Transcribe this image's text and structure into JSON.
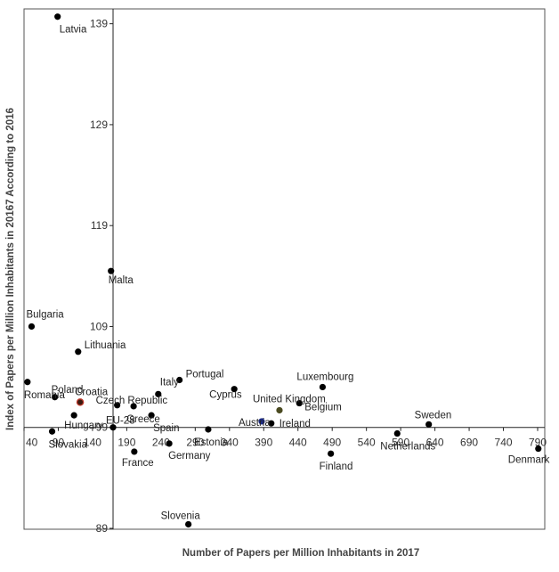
{
  "chart_data": {
    "type": "scatter",
    "title": "",
    "xlabel": "Number of Papers per Million Inhabitants in 2017",
    "ylabel": "Index of Papers per Million Inhabitants in 20167 According to 2016",
    "xlim": [
      40,
      790
    ],
    "ylim": [
      89,
      141
    ],
    "x_ticks": [
      40,
      90,
      140,
      190,
      240,
      290,
      340,
      390,
      440,
      490,
      540,
      590,
      640,
      690,
      740,
      790
    ],
    "y_ticks": [
      89,
      99,
      109,
      119,
      129,
      139
    ],
    "x_cross": 99,
    "y_cross": 170,
    "grid": false,
    "legend": "none",
    "default_color": "#000000",
    "points": [
      {
        "label": "Latvia",
        "x": 89,
        "y": 139.7
      },
      {
        "label": "Malta",
        "x": 167,
        "y": 114.5
      },
      {
        "label": "Bulgaria",
        "x": 51,
        "y": 109.0
      },
      {
        "label": "Lithuania",
        "x": 119,
        "y": 106.5
      },
      {
        "label": "Romania",
        "x": 45,
        "y": 103.5
      },
      {
        "label": "Poland",
        "x": 85,
        "y": 102.0
      },
      {
        "label": "Croatia",
        "x": 122,
        "y": 101.5,
        "color": "#3a1a10",
        "highlight": "#c0392b"
      },
      {
        "label": "Hungary",
        "x": 113,
        "y": 100.2
      },
      {
        "label": "Slovakia",
        "x": 81,
        "y": 98.6
      },
      {
        "label": "EU-28",
        "x": 170,
        "y": 99.0,
        "label_color": "#e6b800"
      },
      {
        "label": "Czech Republic",
        "x": 176,
        "y": 101.2
      },
      {
        "label": "Greece",
        "x": 200,
        "y": 101.1
      },
      {
        "label": "Spain",
        "x": 226,
        "y": 100.2
      },
      {
        "label": "France",
        "x": 201,
        "y": 96.6
      },
      {
        "label": "Italy",
        "x": 236,
        "y": 102.3
      },
      {
        "label": "Germany",
        "x": 252,
        "y": 97.4
      },
      {
        "label": "Portugal",
        "x": 267,
        "y": 103.7
      },
      {
        "label": "Slovenia",
        "x": 280,
        "y": 89.4,
        "label_color": "#e0201c"
      },
      {
        "label": "Estonia",
        "x": 309,
        "y": 98.8
      },
      {
        "label": "Cyprus",
        "x": 347,
        "y": 102.8
      },
      {
        "label": "Austria",
        "x": 387,
        "y": 99.6,
        "color": "#1a2a8a"
      },
      {
        "label": "Ireland",
        "x": 401,
        "y": 99.4
      },
      {
        "label": "United Kingdom",
        "x": 413,
        "y": 100.7,
        "color": "#4a4a20"
      },
      {
        "label": "Belgium",
        "x": 442,
        "y": 101.4
      },
      {
        "label": "Luxembourg",
        "x": 476,
        "y": 103.0
      },
      {
        "label": "Finland",
        "x": 488,
        "y": 96.4
      },
      {
        "label": "Netherlands",
        "x": 585,
        "y": 98.4
      },
      {
        "label": "Sweden",
        "x": 631,
        "y": 99.3
      },
      {
        "label": "Denmark",
        "x": 791,
        "y": 96.9
      }
    ]
  }
}
